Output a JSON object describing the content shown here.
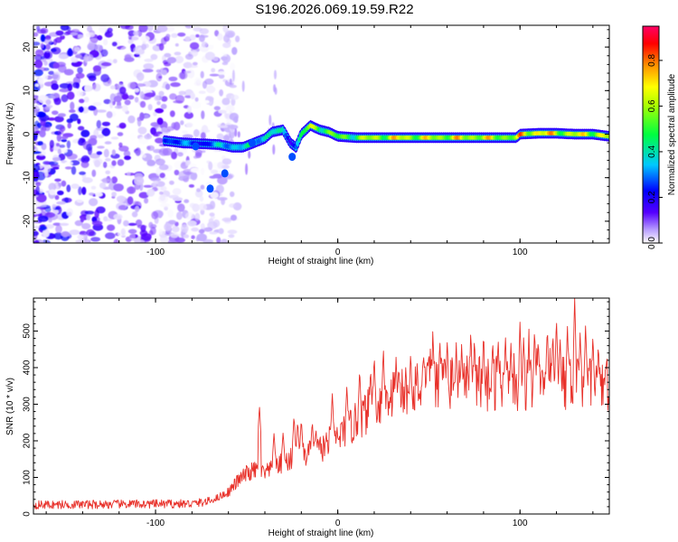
{
  "figure_title": "S196.2026.069.19.59.R22",
  "chart_data": [
    {
      "type": "heatmap",
      "title": "S196.2026.069.19.59.R22",
      "xlabel": "Height of straight line (km)",
      "ylabel": "Frequency (Hz)",
      "xlim": [
        -167,
        149
      ],
      "ylim": [
        -25,
        25
      ],
      "xticks": [
        -100,
        0,
        100
      ],
      "xtick_labels": [
        "-100",
        "0",
        "100"
      ],
      "yticks": [
        -20,
        -10,
        0,
        10,
        20
      ],
      "ytick_labels": [
        "-20",
        "-10",
        "0",
        "10",
        "20"
      ],
      "colorbar": {
        "label": "Normalized spectral amplitude",
        "range": [
          0.0,
          0.95
        ],
        "ticks": [
          0.0,
          0.2,
          0.4,
          0.6,
          0.8
        ],
        "tick_labels": [
          "0.0",
          "0.2",
          "0.4",
          "0.6",
          "0.8"
        ],
        "colormap": [
          "#ffffff",
          "#9a7aff",
          "#4400ff",
          "#0000ff",
          "#00c8ff",
          "#00ff00",
          "#ffff00",
          "#ff8000",
          "#ff0000",
          "#ff0066"
        ]
      },
      "noise_region_km": [
        -167,
        -55
      ],
      "ridge_trace": {
        "x": [
          -95,
          -85,
          -75,
          -65,
          -58,
          -52,
          -46,
          -40,
          -36,
          -30,
          -26,
          -23,
          -20,
          -15,
          -10,
          -5,
          0,
          10,
          30,
          50,
          70,
          90,
          98,
          100,
          110,
          120,
          130,
          140,
          149
        ],
        "freq": [
          -1.5,
          -2,
          -2.2,
          -2.4,
          -3,
          -3,
          -2,
          -1,
          0.5,
          1,
          -2,
          -3,
          0,
          2,
          1,
          0.5,
          -0.5,
          -0.8,
          -0.8,
          -0.8,
          -0.8,
          -0.8,
          -0.8,
          0,
          0.2,
          0.2,
          0,
          0,
          -0.5
        ],
        "amplitude": [
          0.35,
          0.4,
          0.3,
          0.45,
          0.5,
          0.5,
          0.5,
          0.55,
          0.55,
          0.45,
          0.3,
          0.4,
          0.6,
          0.75,
          0.75,
          0.7,
          0.65,
          0.7,
          0.85,
          0.8,
          0.85,
          0.8,
          0.75,
          0.9,
          0.92,
          0.85,
          0.8,
          0.85,
          0.8
        ]
      }
    },
    {
      "type": "line",
      "xlabel": "Height of straight line (km)",
      "ylabel": "SNR (10 * v/v)",
      "xlim": [
        -167,
        149
      ],
      "ylim": [
        0,
        590
      ],
      "xticks": [
        -100,
        0,
        100
      ],
      "xtick_labels": [
        "-100",
        "0",
        "100"
      ],
      "yticks": [
        0,
        100,
        200,
        300,
        400,
        500
      ],
      "ytick_labels": [
        "0",
        "100",
        "200",
        "300",
        "400",
        "500"
      ],
      "series": [
        {
          "name": "SNR",
          "color": "#e8312a",
          "baseline_x": [
            -167,
            -80,
            -70,
            -60,
            -55,
            -50,
            -45,
            -40,
            -35,
            -30,
            -25,
            -20,
            -15,
            -10,
            -5,
            0,
            10,
            20,
            30,
            40,
            50,
            60,
            80,
            100,
            120,
            140,
            149
          ],
          "baseline_y": [
            25,
            28,
            35,
            60,
            90,
            110,
            120,
            110,
            125,
            140,
            150,
            160,
            165,
            175,
            195,
            210,
            250,
            300,
            330,
            345,
            355,
            360,
            360,
            360,
            365,
            360,
            350
          ],
          "spike_peaks_x": [
            -43,
            -35,
            -30,
            -24,
            -22,
            -20,
            -14,
            -12,
            -3,
            5,
            12,
            18,
            20,
            25,
            32,
            40,
            47,
            52,
            56,
            60,
            65,
            68,
            73,
            75,
            80,
            85,
            88,
            92,
            95,
            100,
            102,
            105,
            108,
            110,
            115,
            118,
            120,
            122,
            126,
            130,
            133,
            136,
            140,
            143,
            147
          ],
          "spike_peaks_y": [
            300,
            220,
            225,
            270,
            255,
            260,
            255,
            235,
            330,
            355,
            400,
            400,
            435,
            455,
            430,
            445,
            440,
            520,
            480,
            475,
            470,
            470,
            505,
            485,
            500,
            480,
            485,
            490,
            470,
            530,
            490,
            520,
            510,
            485,
            515,
            500,
            540,
            490,
            520,
            590,
            500,
            525,
            495,
            470,
            420
          ]
        }
      ]
    }
  ]
}
